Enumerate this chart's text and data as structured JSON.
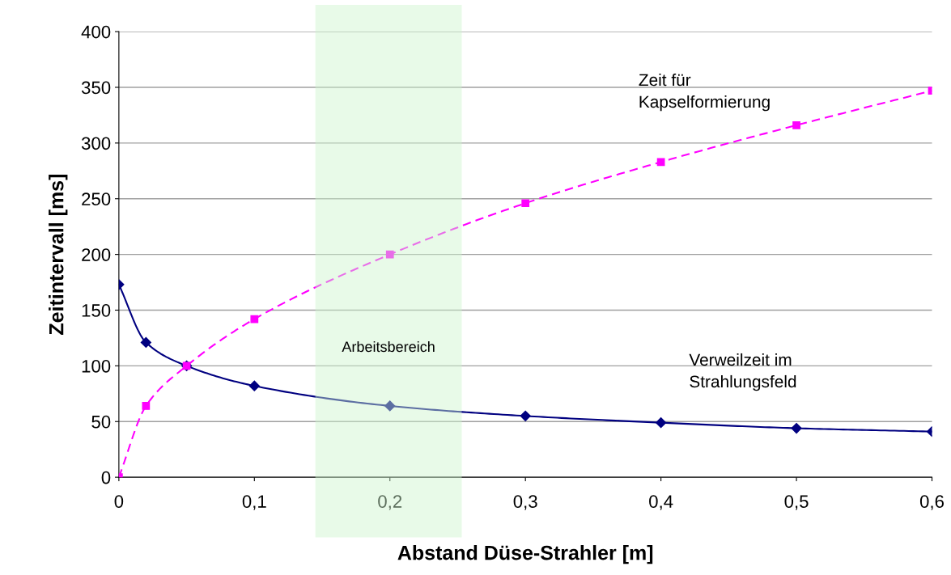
{
  "chart_data": {
    "type": "line",
    "xlabel": "Abstand Düse-Strahler [m]",
    "ylabel": "Zeitintervall [ms]",
    "x": [
      0,
      0.02,
      0.05,
      0.1,
      0.2,
      0.3,
      0.4,
      0.5,
      0.6
    ],
    "series": [
      {
        "name": "Verweilzeit im\nStrahlungsfeld",
        "color": "#000080",
        "marker": "diamond",
        "line_style": "solid",
        "values": [
          173,
          121,
          100,
          82,
          64,
          55,
          49,
          44,
          41
        ]
      },
      {
        "name": "Zeit für\nKapselformierung",
        "color": "#ff00ff",
        "marker": "square",
        "line_style": "dashed",
        "values": [
          0,
          64,
          100,
          142,
          200,
          246,
          283,
          316,
          347
        ]
      }
    ],
    "xlim": [
      0,
      0.6
    ],
    "ylim": [
      0,
      400
    ],
    "xticks": [
      0,
      {
        "value": 0.1,
        "label": "0,1"
      },
      {
        "value": 0.2,
        "label": "0,2"
      },
      {
        "value": 0.3,
        "label": "0,3"
      },
      {
        "value": 0.4,
        "label": "0,4"
      },
      {
        "value": 0.5,
        "label": "0,5"
      },
      {
        "value": 0.6,
        "label": "0,6"
      }
    ],
    "yticks": [
      0,
      50,
      100,
      150,
      200,
      250,
      300,
      350,
      400
    ],
    "grid": "y",
    "legend": false,
    "bands": [
      {
        "axis": "x",
        "from": 0.145,
        "to": 0.253,
        "label": "Arbeitsbereich",
        "color": "#ccf5cc"
      }
    ]
  }
}
